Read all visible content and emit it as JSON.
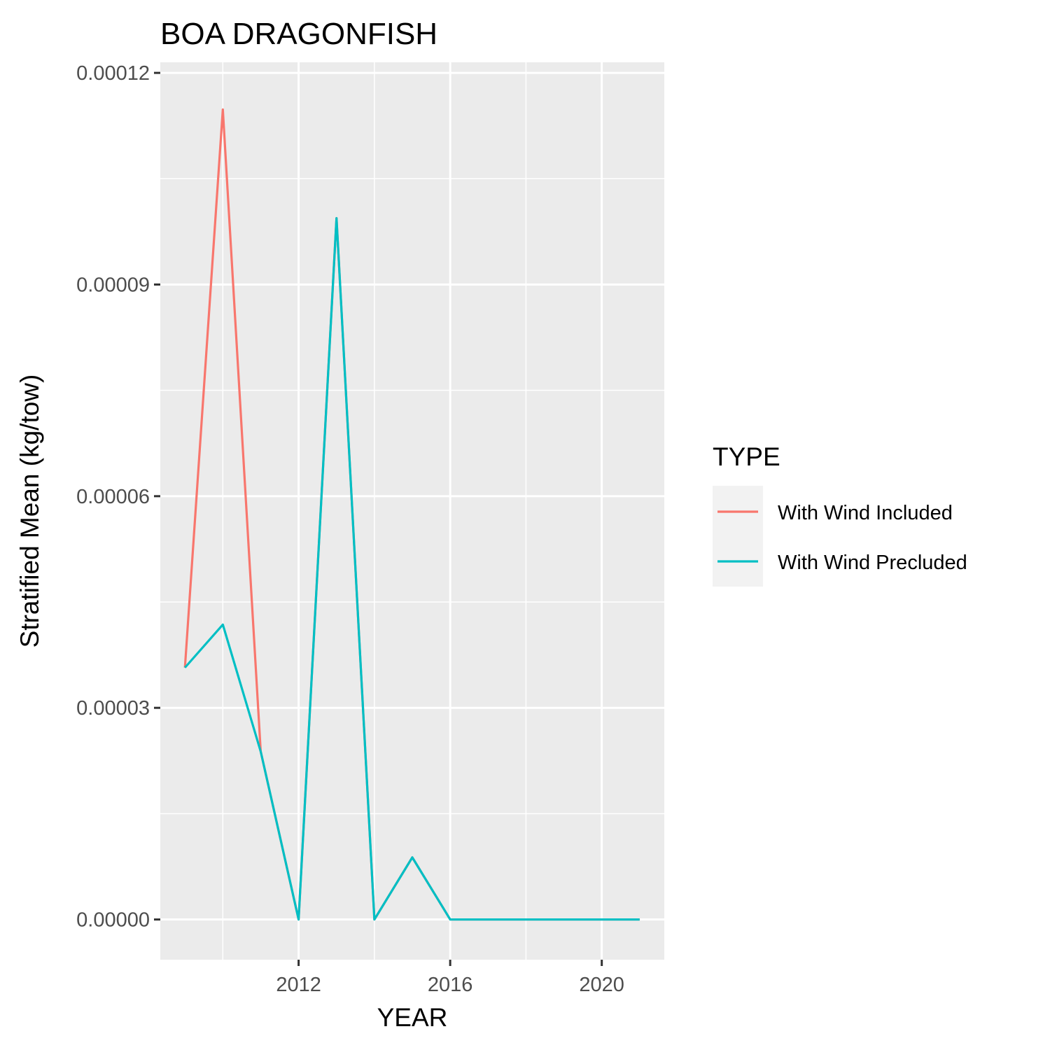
{
  "chart_data": {
    "type": "line",
    "title": "BOA DRAGONFISH",
    "xlabel": "YEAR",
    "ylabel": "Stratified Mean (kg/tow)",
    "xlim": [
      2008.35,
      2021.65
    ],
    "ylim": [
      -5.7e-06,
      0.0001215
    ],
    "x_ticks": [
      2012,
      2016,
      2020
    ],
    "x_tick_labels": [
      "2012",
      "2016",
      "2020"
    ],
    "x_minor_ticks": [
      2010,
      2014,
      2018
    ],
    "y_ticks": [
      0,
      3e-05,
      6e-05,
      9e-05,
      0.00012
    ],
    "y_tick_labels": [
      "0.00000",
      "0.00003",
      "0.00006",
      "0.00009",
      "0.00012"
    ],
    "y_minor_ticks": [
      1.5e-05,
      4.5e-05,
      7.5e-05,
      0.000105
    ],
    "grid": true,
    "legend": {
      "title": "TYPE",
      "position": "right"
    },
    "x": [
      2009,
      2010,
      2011,
      2012,
      2013,
      2014,
      2015,
      2016,
      2017,
      2018,
      2019,
      2020,
      2021
    ],
    "series": [
      {
        "name": "With Wind Included",
        "color": "#F8766D",
        "values": [
          3.57e-05,
          0.0001148,
          2.38e-05,
          0,
          9.94e-05,
          0,
          8.8e-06,
          0,
          0,
          0,
          0,
          0,
          0
        ]
      },
      {
        "name": "With Wind Precluded",
        "color": "#00BFC4",
        "values": [
          3.57e-05,
          4.18e-05,
          2.38e-05,
          0,
          9.94e-05,
          0,
          8.8e-06,
          0,
          0,
          0,
          0,
          0,
          0
        ]
      }
    ]
  }
}
